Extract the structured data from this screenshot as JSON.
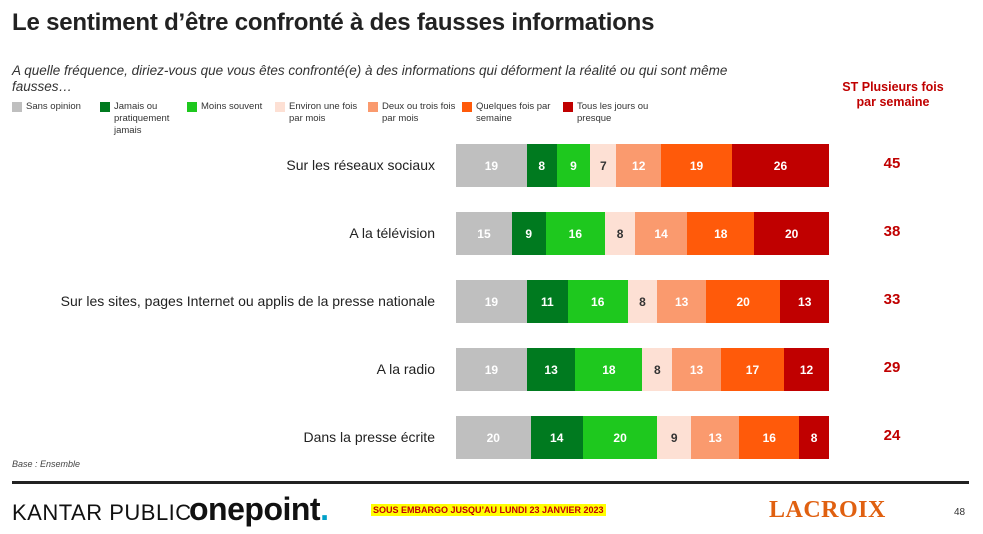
{
  "page": {
    "title": "Le sentiment d’être confronté à des fausses informations",
    "question": "A quelle fréquence, diriez-vous que vous êtes confronté(e) à des informations qui déforment la réalité ou qui sont même fausses…",
    "st_header": "ST Plusieurs fois par semaine",
    "base": "Base : Ensemble",
    "footer": {
      "kantar": "KANTAR PUBLIC",
      "onepoint": "onepoint",
      "onepoint_dot": ".",
      "embargo": "SOUS EMBARGO JUSQU’AU LUNDI 23 JANVIER 2023",
      "lacroix": "LACROIX",
      "page_number": "48"
    }
  },
  "chart_data": {
    "type": "bar",
    "orientation": "horizontal-stacked",
    "legend_placement": "top",
    "categories": [
      "Sur les réseaux sociaux",
      "A la télévision",
      "Sur les sites, pages Internet ou applis de la presse nationale",
      "A la radio",
      "Dans la presse écrite"
    ],
    "series": [
      {
        "name": "Sans opinion",
        "color": "#bfbfbf",
        "values": [
          19,
          15,
          19,
          19,
          20
        ]
      },
      {
        "name": "Jamais ou pratiquement jamais",
        "color": "#007a1f",
        "values": [
          8,
          9,
          11,
          13,
          14
        ]
      },
      {
        "name": "Moins souvent",
        "color": "#1ec81e",
        "values": [
          9,
          16,
          16,
          18,
          20
        ]
      },
      {
        "name": "Environ une fois par mois",
        "color": "#fde0d4",
        "values": [
          7,
          8,
          8,
          8,
          9
        ]
      },
      {
        "name": "Deux ou trois fois par mois",
        "color": "#fa9a6e",
        "values": [
          12,
          14,
          13,
          13,
          13
        ]
      },
      {
        "name": "Quelques fois par semaine",
        "color": "#ff5a0a",
        "values": [
          19,
          18,
          20,
          17,
          16
        ]
      },
      {
        "name": "Tous les jours ou presque",
        "color": "#c00000",
        "values": [
          26,
          20,
          13,
          12,
          8
        ]
      }
    ],
    "st_plusieurs_fois_par_semaine": [
      45,
      38,
      33,
      29,
      24
    ]
  }
}
